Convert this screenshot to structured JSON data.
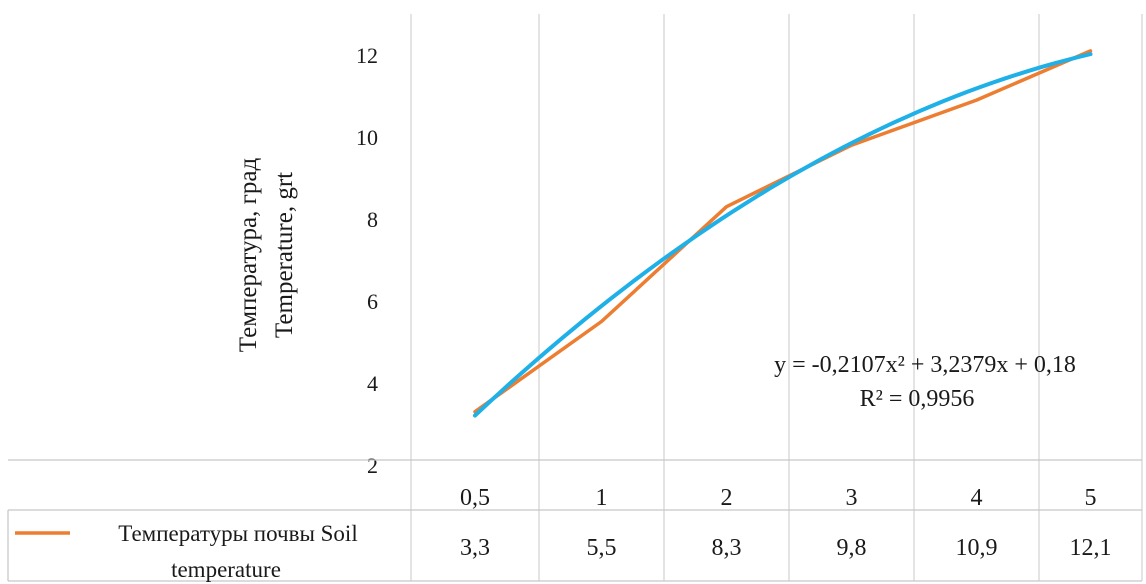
{
  "chart_data": {
    "type": "line",
    "categories": [
      "0,5",
      "1",
      "2",
      "3",
      "4",
      "5"
    ],
    "ylim": [
      2,
      12
    ],
    "yticks": [
      "2",
      "4",
      "6",
      "8",
      "10",
      "12"
    ],
    "ylabel_line1": "Температура, град",
    "ylabel_line2": "Temperature, grt",
    "grid": true,
    "series": [
      {
        "name_line1": "Температуры почвы Soil",
        "name_line2": "temperature",
        "values": [
          3.3,
          5.5,
          8.3,
          9.8,
          10.9,
          12.1
        ],
        "value_labels": [
          "3,3",
          "5,5",
          "8,3",
          "9,8",
          "10,9",
          "12,1"
        ],
        "color": "#ED7D31"
      }
    ],
    "trendline": {
      "type": "polynomial",
      "order": 2,
      "color": "#1EB0E6",
      "equation": "y = -0,2107x² + 3,2379x + 0,18",
      "r_squared": "R² = 0,9956",
      "coefficients": [
        -0.2107,
        3.2379,
        0.18
      ]
    },
    "legend_placement": "data-table-left"
  }
}
